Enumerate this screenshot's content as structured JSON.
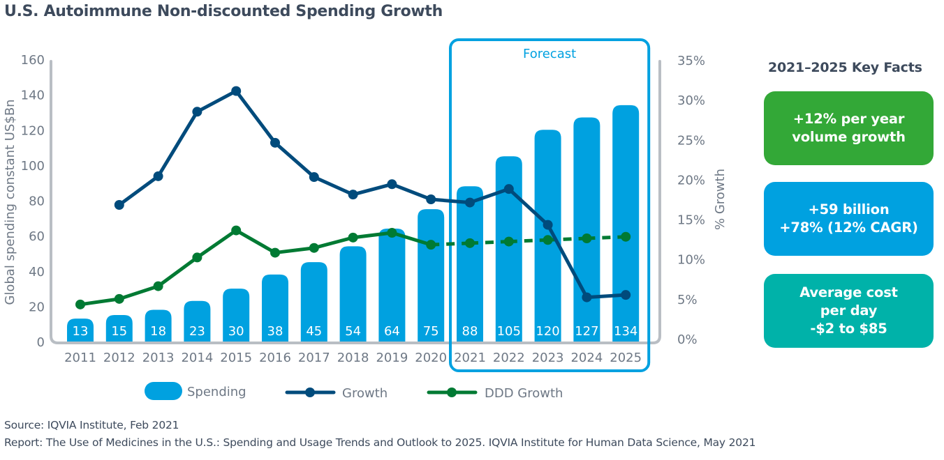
{
  "title": "U.S. Autoimmune Non-discounted Spending Growth",
  "chart_data": {
    "type": "bar",
    "title": "U.S. Autoimmune Non-discounted Spending Growth",
    "categories": [
      "2011",
      "2012",
      "2013",
      "2014",
      "2015",
      "2016",
      "2017",
      "2018",
      "2019",
      "2020",
      "2021",
      "2022",
      "2023",
      "2024",
      "2025"
    ],
    "xlabel": "",
    "ylabel": "Global spending constant US$Bn",
    "y2label": "% Growth",
    "ylim": [
      0,
      160
    ],
    "yticks": [
      "0",
      "20",
      "40",
      "60",
      "80",
      "100",
      "120",
      "140",
      "160"
    ],
    "ytick_values": [
      0,
      20,
      40,
      60,
      80,
      100,
      120,
      140,
      160
    ],
    "y2lim": [
      0,
      35
    ],
    "y2ticks": [
      "0%",
      "5%",
      "10%",
      "15%",
      "20%",
      "25%",
      "30%",
      "35%"
    ],
    "y2tick_values": [
      0,
      5,
      10,
      15,
      20,
      25,
      30,
      35
    ],
    "grid": false,
    "legend_position": "bottom",
    "forecast": {
      "label": "Forecast",
      "from": "2021",
      "to": "2025"
    },
    "series": [
      {
        "name": "Spending",
        "type": "bar",
        "axis": "left",
        "color": "#00a1e0",
        "values": [
          13,
          15,
          18,
          23,
          30,
          38,
          45,
          54,
          64,
          75,
          88,
          105,
          120,
          127,
          134
        ],
        "labels": [
          "13",
          "15",
          "18",
          "23",
          "30",
          "38",
          "45",
          "54",
          "64",
          "75",
          "88",
          "105",
          "120",
          "127",
          "134"
        ]
      },
      {
        "name": "Growth",
        "type": "line",
        "axis": "right",
        "color": "#004b7c",
        "values": [
          null,
          16.8,
          20.4,
          28.5,
          31.1,
          24.6,
          20.3,
          18.1,
          19.4,
          17.5,
          17.1,
          18.8,
          14.3,
          5.2,
          5.5
        ]
      },
      {
        "name": "DDD Growth",
        "type": "line",
        "axis": "right",
        "color": "#007a33",
        "dashed_from": "2020",
        "values": [
          4.3,
          5.0,
          6.6,
          10.2,
          13.6,
          10.8,
          11.4,
          12.7,
          13.3,
          11.8,
          12.0,
          12.2,
          12.4,
          12.6,
          12.8
        ]
      }
    ]
  },
  "key_facts": {
    "title": "2021–2025 Key Facts",
    "items": [
      {
        "lines": [
          "+12% per year",
          "volume growth"
        ],
        "color": "#33a837"
      },
      {
        "lines": [
          "+59 billion",
          "+78% (12% CAGR)"
        ],
        "color": "#00a1e0"
      },
      {
        "lines": [
          "Average cost",
          "per day",
          "-$2 to $85"
        ],
        "color": "#00b2a9"
      }
    ]
  },
  "footer": {
    "source": "Source: IQVIA Institute, Feb 2021",
    "report": "Report: The Use of Medicines in the U.S.: Spending and Usage Trends and Outlook to 2025. IQVIA Institute for Human Data Science, May 2021"
  }
}
